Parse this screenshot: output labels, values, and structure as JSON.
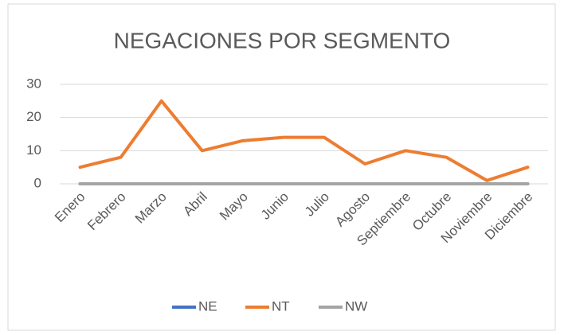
{
  "chart_data": {
    "type": "line",
    "title": "NEGACIONES POR SEGMENTO",
    "categories": [
      "Enero",
      "Febrero",
      "Marzo",
      "Abril",
      "Mayo",
      "Junio",
      "Julio",
      "Agosto",
      "Septiembre",
      "Octubre",
      "Noviembre",
      "Diciembre"
    ],
    "series": [
      {
        "name": "NE",
        "color": "#4472c4",
        "values": [
          0,
          0,
          0,
          0,
          0,
          0,
          0,
          0,
          0,
          0,
          0,
          0
        ]
      },
      {
        "name": "NT",
        "color": "#ed7d31",
        "values": [
          5,
          8,
          25,
          10,
          13,
          14,
          14,
          6,
          10,
          8,
          1,
          5
        ]
      },
      {
        "name": "NW",
        "color": "#a5a5a5",
        "values": [
          0,
          0,
          0,
          0,
          0,
          0,
          0,
          0,
          0,
          0,
          0,
          0
        ]
      }
    ],
    "ylim": [
      0,
      30
    ],
    "yticks": [
      0,
      10,
      20,
      30
    ],
    "grid": true,
    "legend": "bottom"
  }
}
